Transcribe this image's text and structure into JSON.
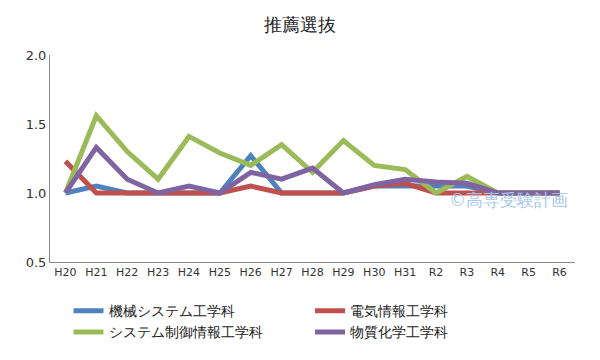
{
  "chart_data": {
    "type": "line",
    "title": "推薦選抜",
    "categories": [
      "H20",
      "H21",
      "H22",
      "H23",
      "H24",
      "H25",
      "H26",
      "H27",
      "H28",
      "H29",
      "H30",
      "H31",
      "R2",
      "R3",
      "R4",
      "R5",
      "R6"
    ],
    "series": [
      {
        "name": "機械システム工学科",
        "color": "#4f81bd",
        "values": [
          1.0,
          1.05,
          1.0,
          1.0,
          1.0,
          1.0,
          1.27,
          1.0,
          1.0,
          1.0,
          1.05,
          1.05,
          1.05,
          1.05,
          1.0,
          1.0,
          1.0
        ]
      },
      {
        "name": "電気情報工学科",
        "color": "#c0504d",
        "values": [
          1.23,
          1.0,
          1.0,
          1.0,
          1.0,
          1.0,
          1.05,
          1.0,
          1.0,
          1.0,
          1.05,
          1.07,
          1.0,
          1.0,
          1.0,
          1.0,
          1.0
        ]
      },
      {
        "name": "システム制御情報工学科",
        "color": "#9bbb59",
        "values": [
          1.0,
          1.56,
          1.3,
          1.1,
          1.41,
          1.29,
          1.2,
          1.35,
          1.15,
          1.38,
          1.2,
          1.17,
          1.0,
          1.12,
          1.0,
          1.0,
          1.0
        ]
      },
      {
        "name": "物質化学工学科",
        "color": "#8064a2",
        "values": [
          1.0,
          1.33,
          1.1,
          1.0,
          1.05,
          1.0,
          1.15,
          1.1,
          1.18,
          1.0,
          1.06,
          1.1,
          1.08,
          1.07,
          1.0,
          1.0,
          1.0
        ]
      }
    ],
    "ylim": [
      0.5,
      2.0
    ],
    "yticks": [
      0.5,
      {
        "value": 1.0,
        "label": "1.0"
      },
      1.5,
      {
        "value": 2.0,
        "label": "2.0"
      }
    ],
    "grid": false,
    "legend": "bottom",
    "annotations": [
      {
        "text": "©高専受験計画"
      }
    ]
  }
}
